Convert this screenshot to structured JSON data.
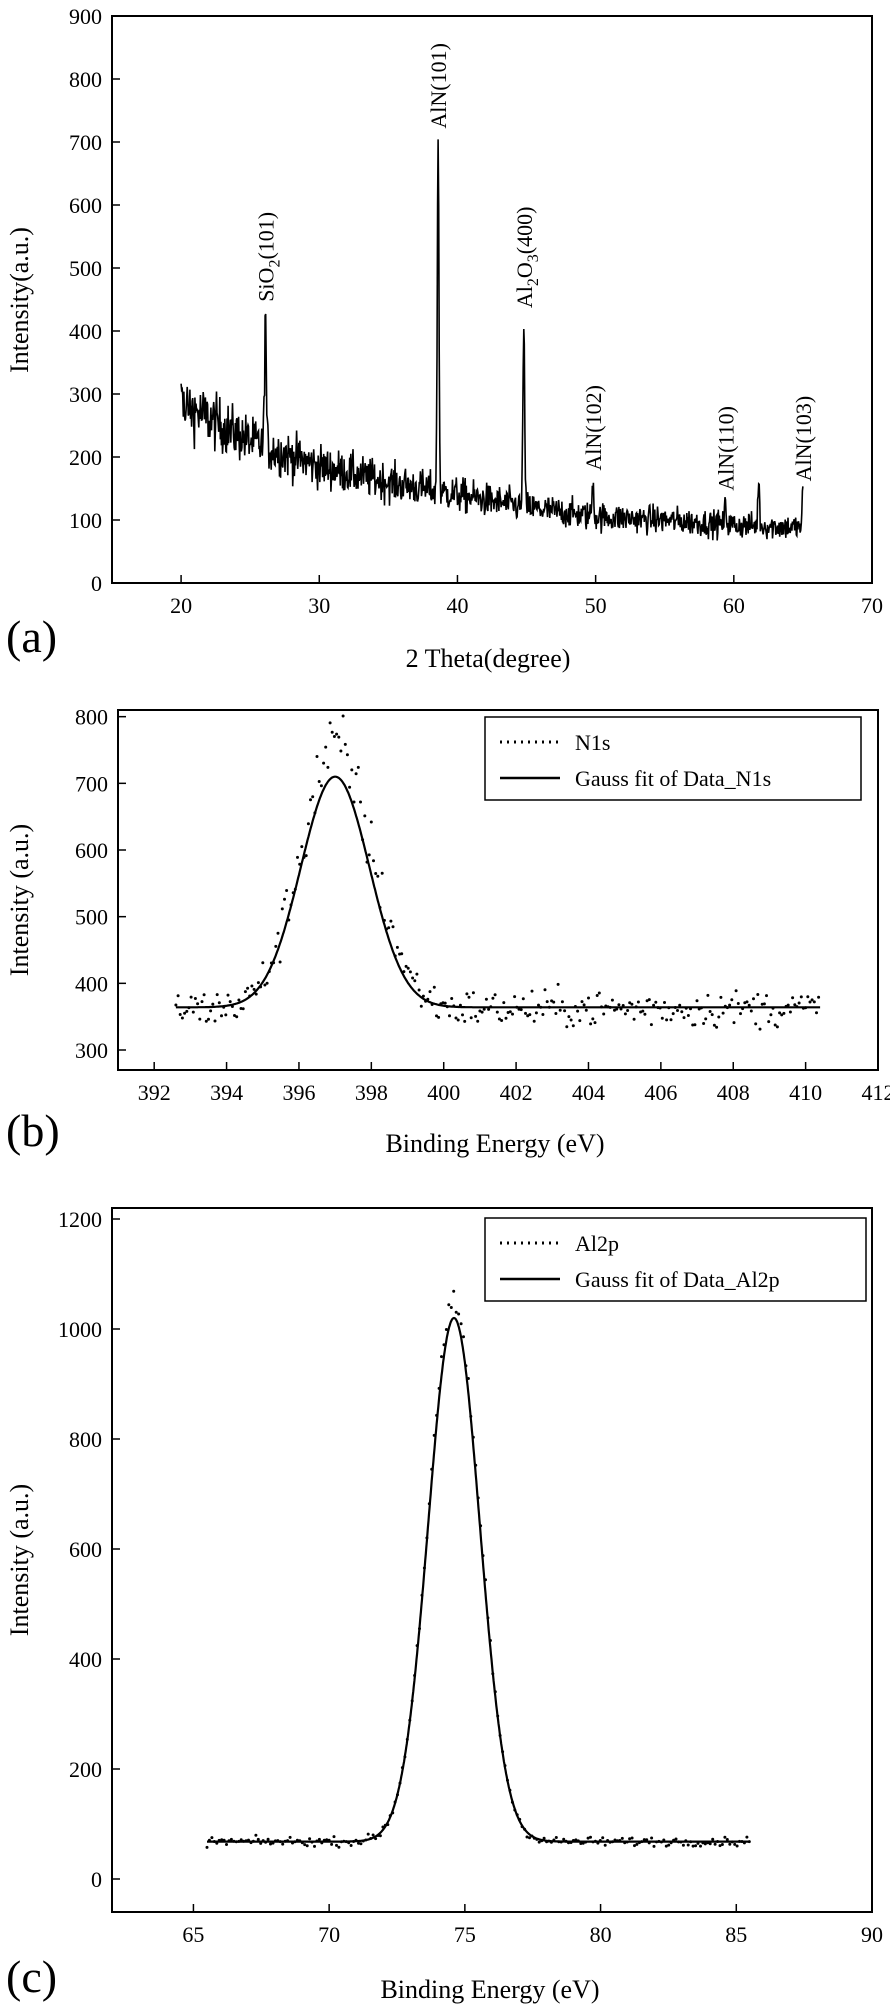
{
  "chart_data": [
    {
      "panel_label": "(a)",
      "type": "line",
      "xlabel": "2 Theta(degree)",
      "ylabel": "Intensity(a.u.)",
      "xlim": [
        15,
        70
      ],
      "ylim": [
        0,
        900
      ],
      "xticks": [
        20,
        30,
        40,
        50,
        60,
        70
      ],
      "yticks": [
        0,
        100,
        200,
        300,
        400,
        500,
        600,
        700,
        800,
        900
      ],
      "x_range": [
        20,
        65
      ],
      "baseline": [
        [
          20,
          285
        ],
        [
          25,
          225
        ],
        [
          30,
          185
        ],
        [
          35,
          160
        ],
        [
          40,
          140
        ],
        [
          45,
          120
        ],
        [
          50,
          105
        ],
        [
          55,
          100
        ],
        [
          60,
          92
        ],
        [
          65,
          88
        ]
      ],
      "peaks": [
        {
          "x": 26.1,
          "y": 430,
          "label": "SiO2(101)"
        },
        {
          "x": 38.6,
          "y": 710,
          "label": "AlN(101)"
        },
        {
          "x": 44.8,
          "y": 420,
          "label": "Al2O3(400)"
        },
        {
          "x": 49.8,
          "y": 165,
          "label": "AlN(102)"
        },
        {
          "x": 59.4,
          "y": 125,
          "label": "AlN(110)"
        },
        {
          "x": 61.8,
          "y": 160,
          "label": ""
        },
        {
          "x": 65.0,
          "y": 142,
          "label": "AlN(103)"
        }
      ],
      "annotations": [
        {
          "main": "SiO",
          "sub": "2",
          "rest": "(101)",
          "x": 26.1,
          "y": 440
        },
        {
          "main": "AlN(101)",
          "sub": "",
          "rest": "",
          "x": 38.6,
          "y": 715
        },
        {
          "main": "Al",
          "sub": "2",
          "rest": "O",
          "sub2": "3",
          "rest2": "(400)",
          "x": 44.8,
          "y": 430
        },
        {
          "main": "AlN(102)",
          "sub": "",
          "rest": "",
          "x": 49.8,
          "y": 172
        },
        {
          "main": "AlN(110)",
          "sub": "",
          "rest": "",
          "x": 59.4,
          "y": 140
        },
        {
          "main": "AlN(103)",
          "sub": "",
          "rest": "",
          "x": 65.0,
          "y": 155
        }
      ]
    },
    {
      "panel_label": "(b)",
      "type": "scatter",
      "xlabel": "Binding Energy (eV)",
      "ylabel": "Intensity (a.u.)",
      "xlim": [
        391,
        412
      ],
      "ylim": [
        270,
        810
      ],
      "xticks": [
        392,
        394,
        396,
        398,
        400,
        402,
        404,
        406,
        408,
        410,
        412
      ],
      "yticks": [
        300,
        400,
        500,
        600,
        700,
        800
      ],
      "series": [
        {
          "name": "N1s",
          "style": "dotted",
          "x_range": [
            392.6,
            410.4
          ],
          "peak_center": 397.0,
          "peak_height": 750,
          "sigma": 0.95,
          "background": 362
        },
        {
          "name": "Gauss fit of Data_N1s",
          "style": "solid",
          "x_range": [
            392.6,
            410.4
          ],
          "peak_center": 397.0,
          "peak_height": 710,
          "sigma": 0.95,
          "background": 364
        }
      ],
      "legend_position": "top-right"
    },
    {
      "panel_label": "(c)",
      "type": "scatter",
      "xlabel": "Binding Energy (eV)",
      "ylabel": "Intensity (a.u.)",
      "xlim": [
        62,
        90
      ],
      "ylim": [
        -60,
        1220
      ],
      "xticks": [
        65,
        70,
        75,
        80,
        85,
        90
      ],
      "yticks": [
        0,
        200,
        400,
        600,
        800,
        1000,
        1200
      ],
      "series": [
        {
          "name": "Al2p",
          "style": "dotted",
          "x_range": [
            65.5,
            85.5
          ],
          "peak_center": 74.6,
          "peak_height": 1040,
          "sigma": 0.95,
          "background": 68
        },
        {
          "name": "Gauss fit of Data_Al2p",
          "style": "solid",
          "x_range": [
            65.5,
            85.5
          ],
          "peak_center": 74.6,
          "peak_height": 1020,
          "sigma": 0.95,
          "background": 68
        }
      ],
      "legend_position": "top-right"
    }
  ]
}
